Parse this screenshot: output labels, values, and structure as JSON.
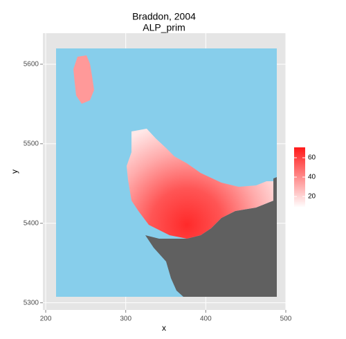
{
  "chart_data": {
    "type": "raster",
    "title": "Braddon, 2004",
    "subtitle": "ALP_prim",
    "x_label": "x",
    "y_label": "y",
    "xlim": [
      196.5,
      500
    ],
    "ylim": [
      5291,
      5639
    ],
    "xticks": [
      200,
      300,
      400,
      500
    ],
    "yticks": [
      5300,
      5400,
      5500,
      5600
    ],
    "grid": true,
    "background_color": "#87ceeb",
    "land_color": "#606060",
    "colorbar": {
      "lim": [
        8.6,
        70.7
      ],
      "ticks": [
        20,
        40,
        60
      ],
      "low_color": "#ffffff",
      "high_color": "#ff1a1a"
    }
  }
}
